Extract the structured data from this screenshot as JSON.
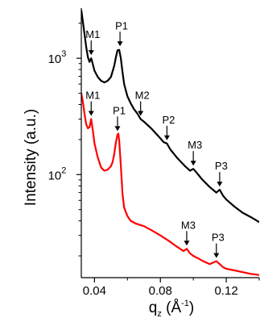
{
  "chart_data": {
    "type": "line",
    "xlabel_parts": {
      "main": "q",
      "sub": "z",
      "open": " (Å",
      "sup": "-1",
      "close": ")"
    },
    "ylabel": "Intensity (a.u.)",
    "x_scale": "linear",
    "y_scale": "log",
    "xlim": [
      0.032,
      0.14
    ],
    "ylim": [
      13,
      2700
    ],
    "x_ticks": [
      0.04,
      0.08,
      0.12
    ],
    "x_tick_labels": [
      "0.04",
      "0.08",
      "0.12"
    ],
    "y_ticks": [
      100,
      1000
    ],
    "y_tick_labels": [
      {
        "base": "10",
        "exp": "2"
      },
      {
        "base": "10",
        "exp": "3"
      }
    ],
    "grid": false,
    "legend": "none",
    "series": [
      {
        "color": "#000000",
        "x": [
          0.032,
          0.0335,
          0.035,
          0.036,
          0.037,
          0.038,
          0.039,
          0.04,
          0.042,
          0.044,
          0.046,
          0.048,
          0.05,
          0.052,
          0.053,
          0.054,
          0.055,
          0.056,
          0.057,
          0.058,
          0.06,
          0.062,
          0.064,
          0.066,
          0.068,
          0.07,
          0.075,
          0.08,
          0.082,
          0.084,
          0.086,
          0.09,
          0.095,
          0.098,
          0.1,
          0.102,
          0.105,
          0.11,
          0.114,
          0.116,
          0.118,
          0.12,
          0.125,
          0.13,
          0.135,
          0.14
        ],
        "y": [
          2600,
          1800,
          1250,
          1020,
          930,
          1000,
          890,
          780,
          690,
          640,
          620,
          640,
          690,
          860,
          1020,
          1170,
          1180,
          1000,
          760,
          600,
          470,
          410,
          365,
          335,
          300,
          285,
          245,
          205,
          190,
          185,
          165,
          140,
          118,
          108,
          112,
          104,
          92,
          78,
          70,
          74,
          66,
          61,
          53,
          47,
          43,
          39
        ]
      },
      {
        "color": "#ff0000",
        "x": [
          0.032,
          0.033,
          0.034,
          0.035,
          0.036,
          0.037,
          0.038,
          0.039,
          0.04,
          0.042,
          0.044,
          0.046,
          0.048,
          0.05,
          0.051,
          0.052,
          0.053,
          0.054,
          0.0545,
          0.055,
          0.056,
          0.057,
          0.058,
          0.06,
          0.062,
          0.065,
          0.07,
          0.075,
          0.08,
          0.085,
          0.09,
          0.094,
          0.096,
          0.098,
          0.1,
          0.103,
          0.106,
          0.11,
          0.112,
          0.114,
          0.116,
          0.118,
          0.12,
          0.125,
          0.13,
          0.135,
          0.14
        ],
        "y": [
          500,
          420,
          330,
          270,
          250,
          255,
          300,
          240,
          185,
          140,
          115,
          108,
          110,
          118,
          128,
          150,
          190,
          220,
          225,
          195,
          120,
          68,
          52,
          44,
          40,
          38,
          36,
          33,
          30,
          27,
          24,
          22,
          23,
          21,
          20,
          19,
          18,
          17,
          17.5,
          18,
          17,
          16,
          15.5,
          15,
          14.5,
          14,
          13.7
        ]
      }
    ],
    "annotations": [
      {
        "text": "M1",
        "series": 0,
        "x": 0.038,
        "y": 1000
      },
      {
        "text": "P1",
        "series": 0,
        "x": 0.0555,
        "y": 1190
      },
      {
        "text": "M2",
        "series": 0,
        "x": 0.068,
        "y": 300
      },
      {
        "text": "P2",
        "series": 0,
        "x": 0.084,
        "y": 185
      },
      {
        "text": "M3",
        "series": 0,
        "x": 0.1,
        "y": 112
      },
      {
        "text": "P3",
        "series": 0,
        "x": 0.116,
        "y": 74
      },
      {
        "text": "M1",
        "series": 1,
        "x": 0.038,
        "y": 300
      },
      {
        "text": "P1",
        "series": 1,
        "x": 0.054,
        "y": 222
      },
      {
        "text": "M3",
        "series": 1,
        "x": 0.096,
        "y": 23
      },
      {
        "text": "P3",
        "series": 1,
        "x": 0.114,
        "y": 18
      }
    ]
  }
}
